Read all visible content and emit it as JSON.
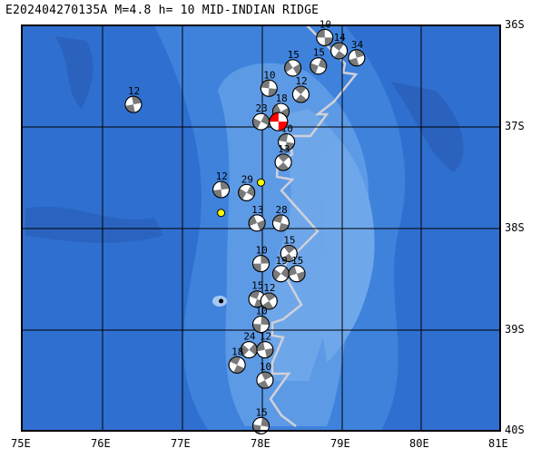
{
  "header": {
    "event_id": "E202404270135A",
    "magnitude": "M=4.8",
    "depth": "h= 10",
    "region": "MID-INDIAN RIDGE"
  },
  "axes": {
    "lat_labels": [
      "36S",
      "37S",
      "38S",
      "39S",
      "40S"
    ],
    "lon_labels": [
      "75E",
      "76E",
      "77E",
      "78E",
      "79E",
      "80E",
      "81E"
    ],
    "lon_range": [
      75,
      81
    ],
    "lat_range": [
      -36,
      -40
    ]
  },
  "colors": {
    "deep_ocean": "#2f6fd0",
    "mid_ocean": "#3e82dc",
    "shallow_ocean": "#5d9ae6",
    "grid": "#000000",
    "ridge": "#c8c8d0",
    "event_main": "#ff0000",
    "event_secondary": "#ffff00"
  },
  "mechanisms": [
    {
      "lon": 78.8,
      "lat": -36.12,
      "depth": "10"
    },
    {
      "lon": 78.98,
      "lat": -36.25,
      "depth": "14"
    },
    {
      "lon": 79.2,
      "lat": -36.32,
      "depth": "34"
    },
    {
      "lon": 78.72,
      "lat": -36.4,
      "depth": "15"
    },
    {
      "lon": 78.4,
      "lat": -36.42,
      "depth": "15"
    },
    {
      "lon": 78.1,
      "lat": -36.62,
      "depth": "10"
    },
    {
      "lon": 78.5,
      "lat": -36.68,
      "depth": "12"
    },
    {
      "lon": 76.4,
      "lat": -36.78,
      "depth": "12"
    },
    {
      "lon": 78.0,
      "lat": -36.95,
      "depth": "23"
    },
    {
      "lon": 78.25,
      "lat": -36.85,
      "depth": "18"
    },
    {
      "lon": 78.32,
      "lat": -37.15,
      "depth": "10"
    },
    {
      "lon": 78.28,
      "lat": -37.35,
      "depth": "13"
    },
    {
      "lon": 77.5,
      "lat": -37.62,
      "depth": "12"
    },
    {
      "lon": 77.82,
      "lat": -37.65,
      "depth": "29"
    },
    {
      "lon": 77.95,
      "lat": -37.95,
      "depth": "13"
    },
    {
      "lon": 78.25,
      "lat": -37.95,
      "depth": "28"
    },
    {
      "lon": 78.35,
      "lat": -38.25,
      "depth": "15"
    },
    {
      "lon": 78.0,
      "lat": -38.35,
      "depth": "10"
    },
    {
      "lon": 78.25,
      "lat": -38.45,
      "depth": "19"
    },
    {
      "lon": 78.45,
      "lat": -38.45,
      "depth": "15"
    },
    {
      "lon": 77.95,
      "lat": -38.7,
      "depth": "15"
    },
    {
      "lon": 78.1,
      "lat": -38.72,
      "depth": "12"
    },
    {
      "lon": 78.0,
      "lat": -38.95,
      "depth": "10"
    },
    {
      "lon": 77.85,
      "lat": -39.2,
      "depth": "24"
    },
    {
      "lon": 78.05,
      "lat": -39.2,
      "depth": "12"
    },
    {
      "lon": 77.7,
      "lat": -39.35,
      "depth": "18"
    },
    {
      "lon": 78.05,
      "lat": -39.5,
      "depth": "10"
    },
    {
      "lon": 78.0,
      "lat": -39.95,
      "depth": "15"
    }
  ],
  "main_event": {
    "lon": 78.22,
    "lat": -36.95
  },
  "epicenter_markers": [
    {
      "lon": 78.0,
      "lat": -37.55,
      "kind": "yellow"
    },
    {
      "lon": 77.5,
      "lat": -37.85,
      "kind": "yellow"
    },
    {
      "lon": 77.5,
      "lat": -38.72,
      "kind": "black"
    }
  ]
}
